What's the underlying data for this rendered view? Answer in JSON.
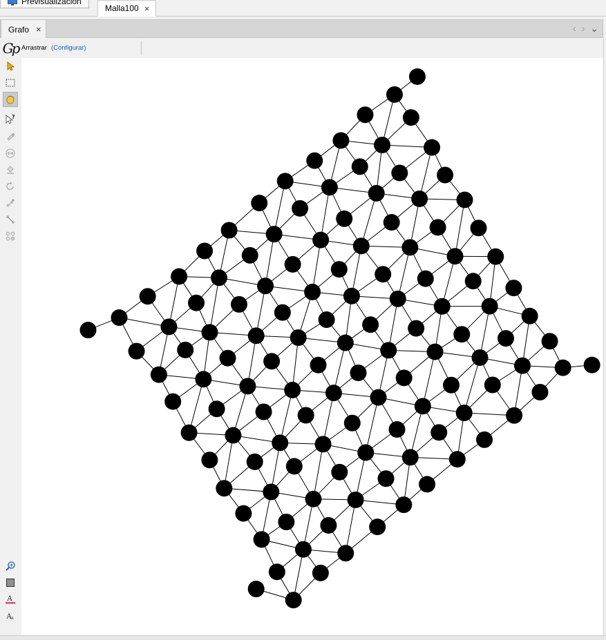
{
  "document_tabs": [
    {
      "label": "Previsualización",
      "icon": "monitor-icon"
    },
    {
      "label": "Malla100",
      "icon": "",
      "close": "×"
    }
  ],
  "panel": {
    "tab_label": "Grafo",
    "close": "×",
    "nav_prev": "‹",
    "nav_next": "›",
    "nav_menu": "⌄"
  },
  "options_bar": {
    "logo_text": "Gp",
    "tool_label": "Arrastrar",
    "configure_link": "(Configurar)"
  },
  "left_toolbar": {
    "tools": [
      {
        "name": "select-tool",
        "icon": "arrow-cursor-icon",
        "active": false
      },
      {
        "name": "rectangle-select-tool",
        "icon": "dotted-rectangle-icon",
        "active": false
      },
      {
        "name": "drag-tool",
        "icon": "hand-icon",
        "active": true
      },
      {
        "name": "edit-tool",
        "icon": "cursor-question-icon",
        "active": false
      },
      {
        "name": "painter-tool",
        "icon": "brush-icon",
        "active": false
      },
      {
        "name": "sizer-tool",
        "icon": "resize-icon",
        "active": false
      },
      {
        "name": "bucket-tool",
        "icon": "paint-bucket-icon",
        "active": false
      },
      {
        "name": "shortest-path-tool",
        "icon": "rotate-icon",
        "active": false
      },
      {
        "name": "add-node-tool",
        "icon": "add-node-icon",
        "active": false
      },
      {
        "name": "add-edge-tool",
        "icon": "add-edge-icon",
        "active": false
      },
      {
        "name": "heat-map-tool",
        "icon": "node-group-icon",
        "active": false
      }
    ],
    "bottom_tools": [
      {
        "name": "zoom-fit-button",
        "icon": "magnifier-icon"
      },
      {
        "name": "background-color-button",
        "icon": "square-color-icon"
      },
      {
        "name": "label-color-button",
        "icon": "text-color-icon"
      },
      {
        "name": "label-size-button",
        "icon": "text-size-icon"
      }
    ]
  },
  "graph": {
    "node_color": "#000000",
    "edge_color": "#000000",
    "node_count": 122
  }
}
